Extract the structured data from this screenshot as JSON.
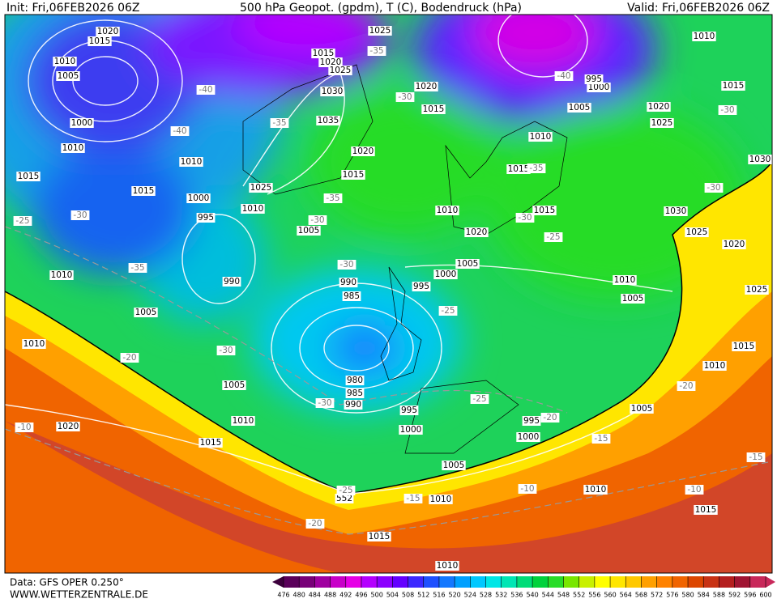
{
  "header": {
    "init": "Init: Fri,06FEB2026 06Z",
    "title": "500 hPa Geopot. (gpdm), T (C), Bodendruck (hPa)",
    "valid": "Valid: Fri,06FEB2026 06Z"
  },
  "map": {
    "pressure_labels": [
      1020,
      1015,
      1010,
      1005,
      1000,
      1010,
      1010,
      1015,
      1015,
      1000,
      995,
      1010,
      1005,
      1025,
      1015,
      1020,
      1025,
      1030,
      1035,
      1020,
      1015,
      1025,
      1020,
      1015,
      990,
      1010,
      1005,
      1010,
      990,
      985,
      995,
      1000,
      1005,
      1010,
      1020,
      1015,
      1015,
      1010,
      1010,
      1015,
      1005,
      1000,
      995,
      1020,
      1025,
      1030,
      1030,
      1025,
      1020,
      1025,
      1010,
      1005,
      1015,
      1010,
      1005,
      980,
      985,
      990,
      995,
      1000,
      995,
      1000,
      1005,
      1010,
      1015,
      1020,
      1005,
      552,
      1010,
      1010,
      1015,
      1015,
      1010
    ],
    "temperature_labels": [
      -35,
      -40,
      -40,
      -35,
      -30,
      -35,
      -30,
      -35,
      -30,
      -25,
      -30,
      -25,
      -35,
      -30,
      -30,
      -20,
      -25,
      -25,
      -20,
      -30,
      -15,
      -20,
      -15,
      -10,
      -25,
      -15,
      -10,
      -10,
      -20,
      -40,
      -30,
      -30
    ]
  },
  "colorbar": {
    "ticks": [
      476,
      480,
      484,
      488,
      492,
      496,
      500,
      504,
      508,
      512,
      516,
      520,
      524,
      528,
      532,
      536,
      540,
      544,
      548,
      552,
      556,
      560,
      564,
      568,
      572,
      576,
      580,
      584,
      588,
      592,
      596,
      600
    ],
    "colors": [
      "#5a005a",
      "#780078",
      "#a000a0",
      "#c800c8",
      "#e600e6",
      "#b400ff",
      "#8c00ff",
      "#6400ff",
      "#3c28ff",
      "#1e50ff",
      "#1478ff",
      "#00a0ff",
      "#00c8ff",
      "#00e6e6",
      "#00e6b4",
      "#00dc78",
      "#00d23c",
      "#28dc28",
      "#78e600",
      "#c8f000",
      "#ffff00",
      "#ffe600",
      "#ffc800",
      "#ffa000",
      "#ff8200",
      "#f06400",
      "#dc4600",
      "#c83214",
      "#b41e1e",
      "#a01432",
      "#c8285a"
    ]
  },
  "footer": {
    "source": "Data: GFS OPER 0.250°",
    "website": "WWW.WETTERZENTRALE.DE"
  }
}
